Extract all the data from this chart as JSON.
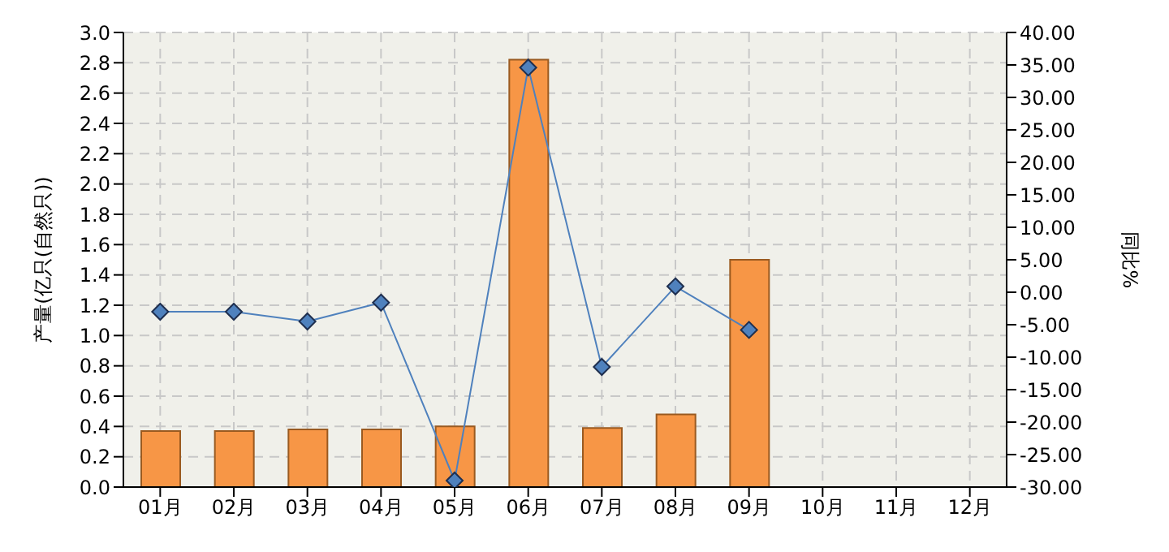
{
  "chart_data": {
    "type": "bar",
    "ylabel": "产量(亿只(自然只))",
    "y2label": "同比%",
    "categories": [
      "01月",
      "02月",
      "03月",
      "04月",
      "05月",
      "06月",
      "07月",
      "08月",
      "09月",
      "10月",
      "11月",
      "12月"
    ],
    "series": [
      {
        "color": "#f79646",
        "values": [
          0.37,
          0.37,
          0.38,
          0.38,
          0.4,
          2.82,
          0.39,
          0.48,
          1.5,
          null,
          null,
          null
        ]
      },
      {
        "type": "line",
        "axis": "y2",
        "color": "#4f81bd",
        "marker": "diamond",
        "values": [
          -3.0,
          -3.0,
          -4.5,
          -1.6,
          -29.0,
          34.6,
          -11.5,
          0.9,
          -5.8,
          null,
          null,
          null
        ]
      }
    ],
    "ylim": [
      0,
      3
    ],
    "yticks": [
      {
        "value": 0,
        "label": "0.0"
      },
      {
        "value": 0.2,
        "label": "0.2"
      },
      {
        "value": 0.4,
        "label": "0.4"
      },
      {
        "value": 0.6,
        "label": "0.6"
      },
      {
        "value": 0.8,
        "label": "0.8"
      },
      {
        "value": 1,
        "label": "1.0"
      },
      {
        "value": 1.2,
        "label": "1.2"
      },
      {
        "value": 1.4,
        "label": "1.4"
      },
      {
        "value": 1.6,
        "label": "1.6"
      },
      {
        "value": 1.8,
        "label": "1.8"
      },
      {
        "value": 2,
        "label": "2.0"
      },
      {
        "value": 2.2,
        "label": "2.2"
      },
      {
        "value": 2.4,
        "label": "2.4"
      },
      {
        "value": 2.6,
        "label": "2.6"
      },
      {
        "value": 2.8,
        "label": "2.8"
      },
      {
        "value": 3,
        "label": "3.0"
      }
    ],
    "y2lim": [
      -30,
      40
    ],
    "y2ticks": [
      {
        "value": -30,
        "label": "-30.00"
      },
      {
        "value": -25,
        "label": "-25.00"
      },
      {
        "value": -20,
        "label": "-20.00"
      },
      {
        "value": -15,
        "label": "-15.00"
      },
      {
        "value": -10,
        "label": "-10.00"
      },
      {
        "value": -5,
        "label": "-5.00"
      },
      {
        "value": 0,
        "label": "0.00"
      },
      {
        "value": 5,
        "label": "5.00"
      },
      {
        "value": 10,
        "label": "10.00"
      },
      {
        "value": 15,
        "label": "15.00"
      },
      {
        "value": 20,
        "label": "20.00"
      },
      {
        "value": 25,
        "label": "25.00"
      },
      {
        "value": 30,
        "label": "30.00"
      },
      {
        "value": 35,
        "label": "35.00"
      },
      {
        "value": 40,
        "label": "40.00"
      }
    ],
    "grid": true,
    "line_style": "solid"
  }
}
